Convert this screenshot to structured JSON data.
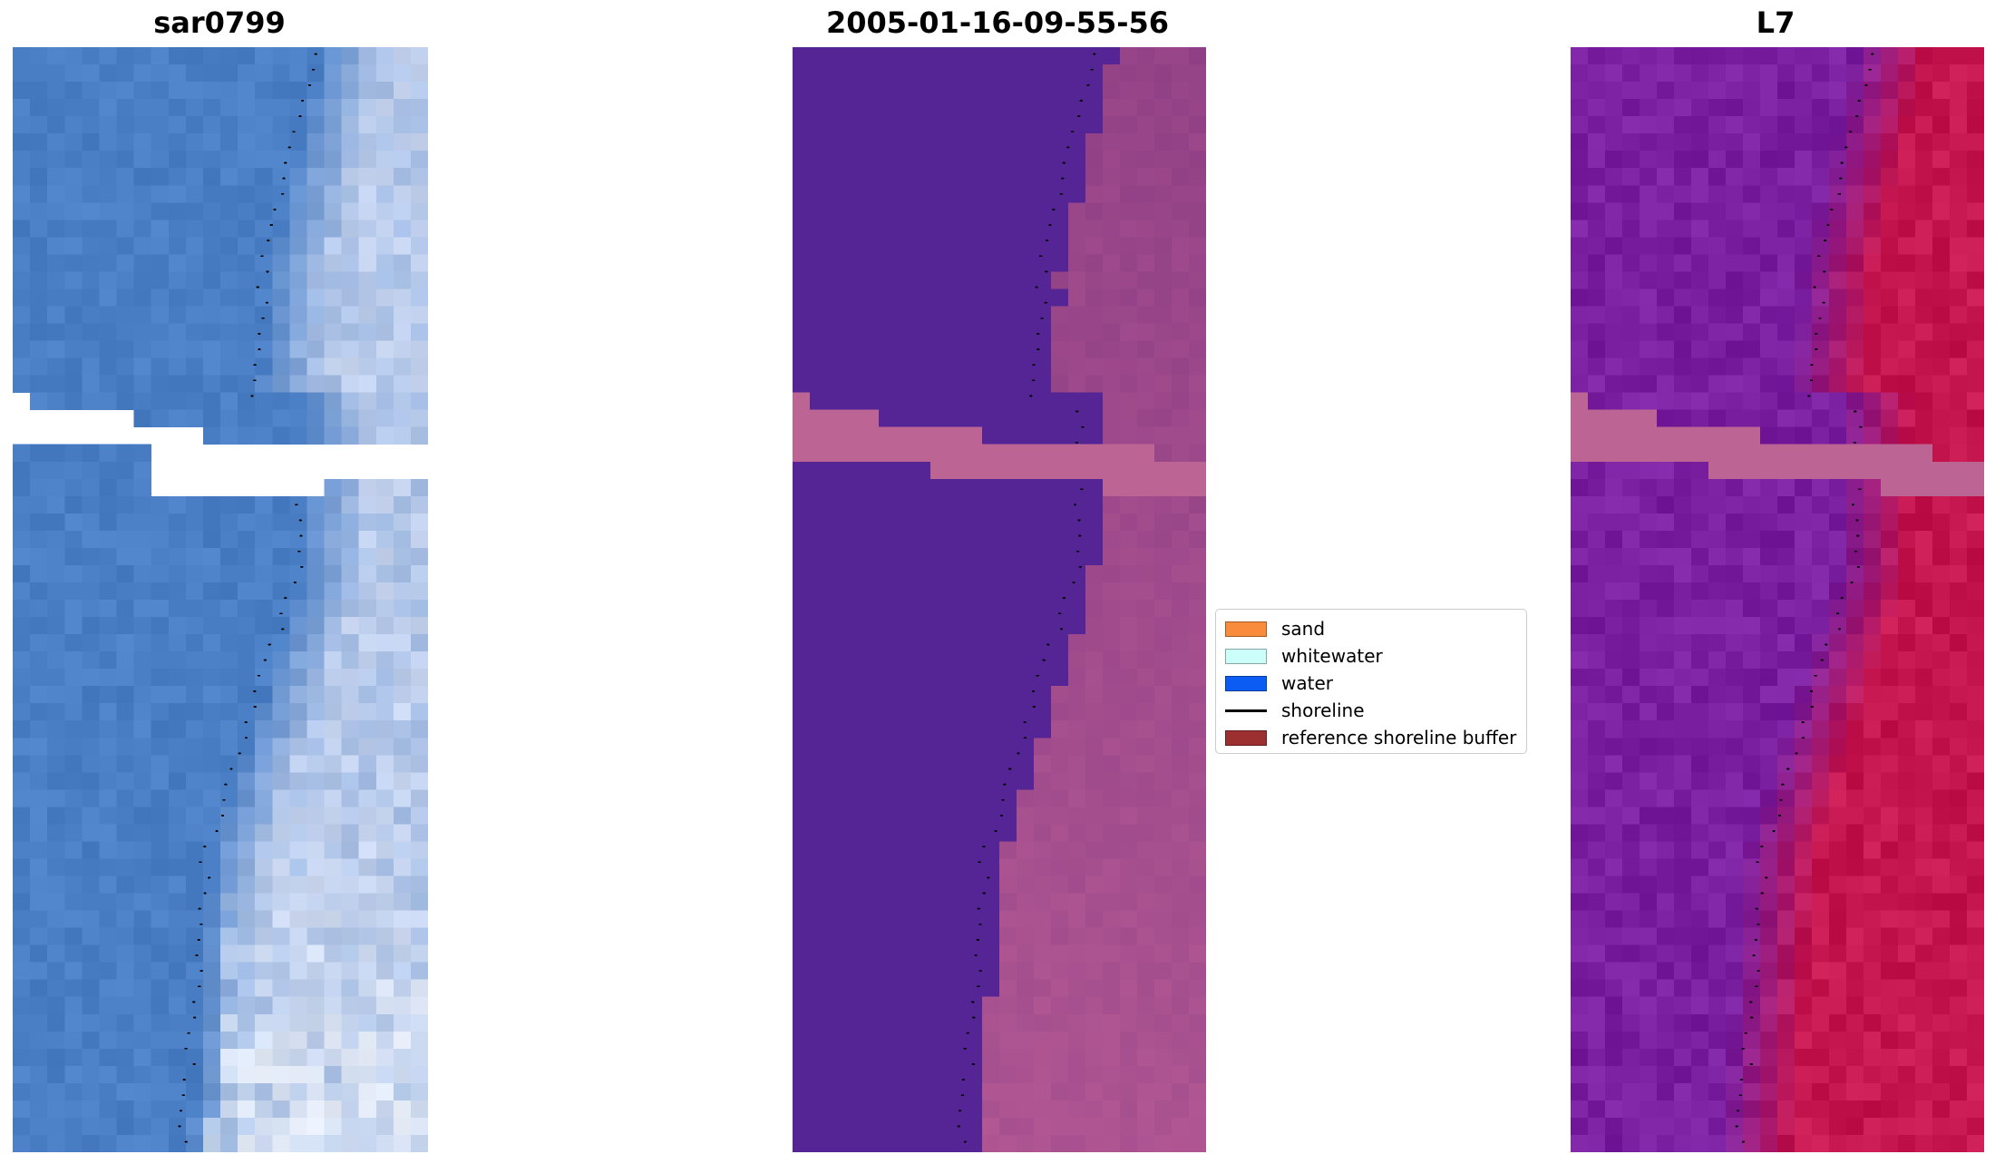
{
  "panels": [
    {
      "title": "sar0799"
    },
    {
      "title": "2005-01-16-09-55-56"
    },
    {
      "title": "L7"
    }
  ],
  "legend": {
    "items": [
      {
        "label": "sand",
        "type": "patch",
        "color": "#f98b3c"
      },
      {
        "label": "whitewater",
        "type": "patch",
        "color": "#ccfff9"
      },
      {
        "label": "water",
        "type": "patch",
        "color": "#0b5cf2"
      },
      {
        "label": "shoreline",
        "type": "line",
        "color": "#000000"
      },
      {
        "label": "reference shoreline buffer",
        "type": "patch",
        "color": "#9c2f2f"
      }
    ]
  },
  "colors": {
    "rgb_water": "#4a7fc6",
    "rgb_surf": "#c9d6f0",
    "classified_water": "#552596",
    "classified_land": "#8f3f85",
    "classified_nodata": "#bc6594",
    "ndwi_low": "#7a1fa0",
    "ndwi_high": "#c5164f",
    "nodata_band": "#bc6594"
  }
}
